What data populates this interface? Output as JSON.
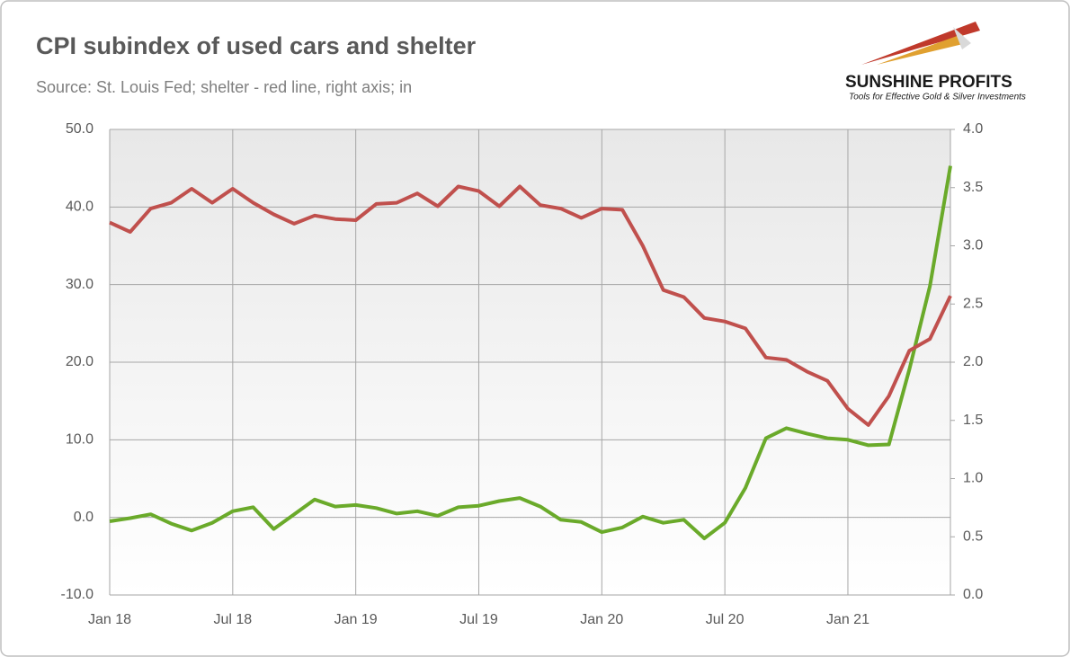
{
  "chart_data": {
    "type": "line",
    "title": "CPI subindex of used cars and shelter",
    "subtitle": "Source: St. Louis Fed; shelter - red line, right axis; in",
    "logo": {
      "name": "SUNSHINE PROFITS",
      "tagline": "Tools for Effective Gold & Silver Investments"
    },
    "categories": [
      "Jan 18",
      null,
      null,
      null,
      null,
      null,
      "Jul 18",
      null,
      null,
      null,
      null,
      null,
      "Jan 19",
      null,
      null,
      null,
      null,
      null,
      "Jul 19",
      null,
      null,
      null,
      null,
      null,
      "Jan 20",
      null,
      null,
      null,
      null,
      null,
      "Jul 20",
      null,
      null,
      null,
      null,
      null,
      "Jan 21",
      null,
      null,
      null,
      null,
      null
    ],
    "series": [
      {
        "color": "#6aaa2a",
        "axis": "y",
        "values": [
          -0.5,
          -0.1,
          0.4,
          -0.8,
          -1.7,
          -0.7,
          0.8,
          1.3,
          -1.5,
          0.4,
          2.3,
          1.4,
          1.6,
          1.2,
          0.5,
          0.8,
          0.2,
          1.3,
          1.5,
          2.1,
          2.5,
          1.4,
          -0.3,
          -0.6,
          -1.9,
          -1.3,
          0.1,
          -0.7,
          -0.3,
          -2.7,
          -0.7,
          3.8,
          10.2,
          11.5,
          10.8,
          10.2,
          10.0,
          9.3,
          9.4,
          19.1,
          29.8,
          45.3
        ]
      },
      {
        "color": "#c0504d",
        "axis": "y2",
        "values": [
          3.2,
          3.12,
          3.32,
          3.37,
          3.49,
          3.37,
          3.49,
          3.37,
          3.27,
          3.19,
          3.26,
          3.23,
          3.22,
          3.36,
          3.37,
          3.45,
          3.34,
          3.51,
          3.47,
          3.34,
          3.51,
          3.35,
          3.32,
          3.24,
          3.32,
          3.31,
          3.0,
          2.62,
          2.56,
          2.38,
          2.35,
          2.29,
          2.04,
          2.02,
          1.92,
          1.84,
          1.6,
          1.46,
          1.71,
          2.1,
          2.2,
          2.57
        ]
      }
    ],
    "ylim": [
      -10,
      50
    ],
    "yticks": [
      {
        "value": -10,
        "label": "-10.0"
      },
      {
        "value": 0,
        "label": "0.0"
      },
      {
        "value": 10,
        "label": "10.0"
      },
      {
        "value": 20,
        "label": "20.0"
      },
      {
        "value": 30,
        "label": "30.0"
      },
      {
        "value": 40,
        "label": "40.0"
      },
      {
        "value": 50,
        "label": "50.0"
      }
    ],
    "y2lim": [
      0,
      4
    ],
    "y2ticks": [
      {
        "value": 0,
        "label": "0.0"
      },
      0.5,
      {
        "value": 1,
        "label": "1.0"
      },
      1.5,
      {
        "value": 2,
        "label": "2.0"
      },
      2.5,
      {
        "value": 3,
        "label": "3.0"
      },
      3.5,
      {
        "value": 4,
        "label": "4.0"
      }
    ],
    "grid": true
  }
}
